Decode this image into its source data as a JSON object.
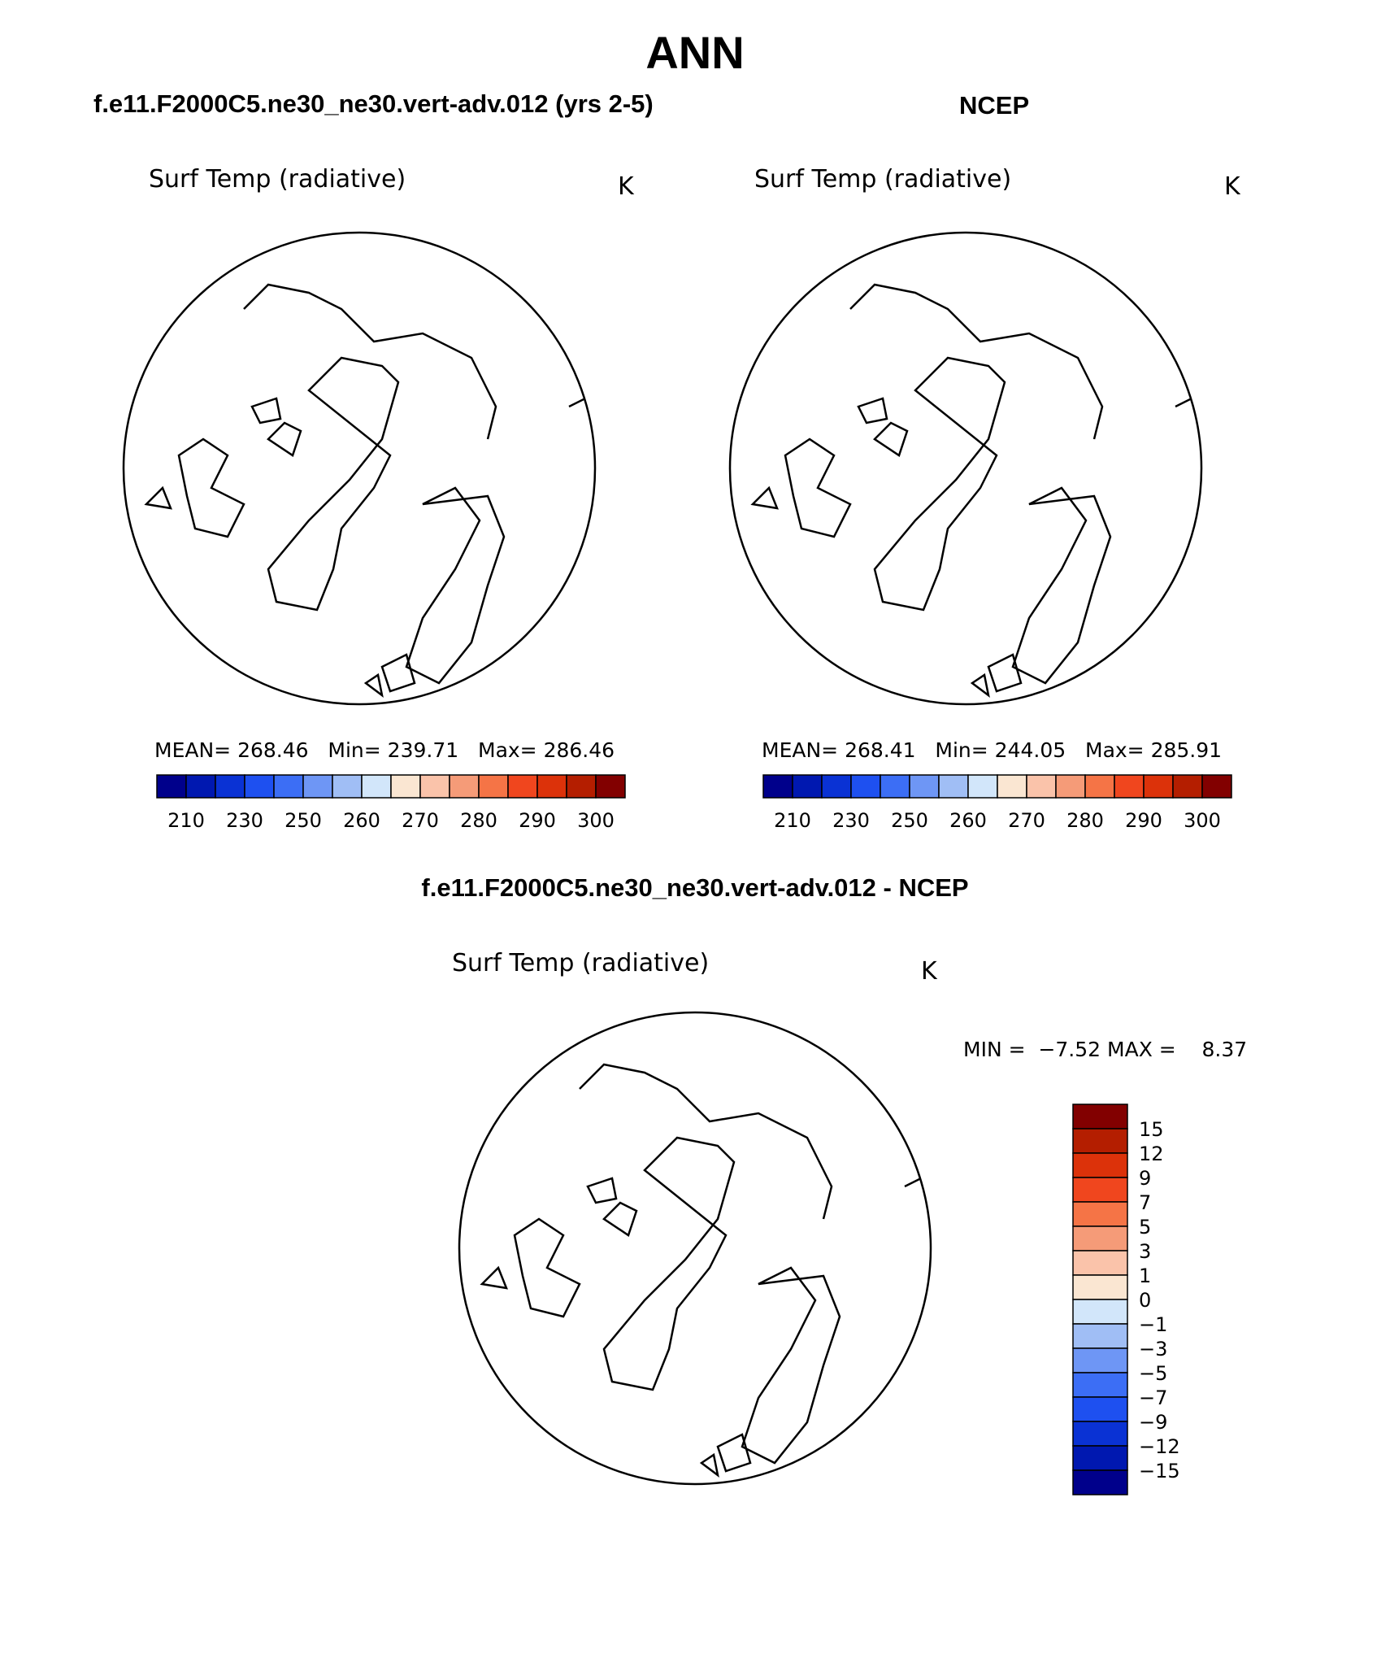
{
  "page": {
    "title": "ANN",
    "left_header": "f.e11.F2000C5.ne30_ne30.vert-adv.012 (yrs 2-5)",
    "right_header": "NCEP",
    "diff_header": "f.e11.F2000C5.ne30_ne30.vert-adv.012 - NCEP"
  },
  "panels": {
    "model": {
      "variable": "Surf Temp (radiative)",
      "units": "K",
      "mean_label": "MEAN=",
      "mean_value": "268.46",
      "min_label": "Min=",
      "min_value": "239.71",
      "max_label": "Max=",
      "max_value": "286.46"
    },
    "obs": {
      "variable": "Surf Temp (radiative)",
      "units": "K",
      "mean_label": "MEAN=",
      "mean_value": "268.41",
      "min_label": "Min=",
      "min_value": "244.05",
      "max_label": "Max=",
      "max_value": "285.91"
    },
    "diff": {
      "variable": "Surf Temp (radiative)",
      "units": "K",
      "min_label": "MIN =",
      "min_value": "−7.52",
      "max_label": "MAX =",
      "max_value": "8.37"
    }
  },
  "legend_abs": {
    "tick_labels": [
      "210",
      "230",
      "250",
      "260",
      "270",
      "280",
      "290",
      "300"
    ],
    "colors": [
      "#00008b",
      "#0018b0",
      "#0a32d4",
      "#1e50f0",
      "#3c6ef5",
      "#6e96f5",
      "#a0bef5",
      "#d2e6fa",
      "#fae6d2",
      "#fac3aa",
      "#f59b78",
      "#f57446",
      "#f0461e",
      "#dc320a",
      "#b41e00",
      "#820000"
    ]
  },
  "legend_diff": {
    "tick_labels": [
      "15",
      "12",
      "9",
      "7",
      "5",
      "3",
      "1",
      "0",
      "−1",
      "−3",
      "−5",
      "−7",
      "−9",
      "−12",
      "−15"
    ],
    "colors": [
      "#820000",
      "#b41e00",
      "#dc320a",
      "#f0461e",
      "#f57446",
      "#f59b78",
      "#fac3aa",
      "#fae6d2",
      "#d2e6fa",
      "#a0bef5",
      "#6e96f5",
      "#3c6ef5",
      "#1e50f0",
      "#0a32d4",
      "#0018b0",
      "#00008b"
    ]
  },
  "palette": {
    "cold_deep": "#3c6ef5",
    "cold_mid": "#6e96f5",
    "cold": "#a0bef5",
    "cool": "#d2e6fa",
    "mild": "#fae6d2",
    "warm_light": "#fac3aa",
    "warm": "#f59b78",
    "hot": "#f57446",
    "hotter": "#f0461e"
  }
}
